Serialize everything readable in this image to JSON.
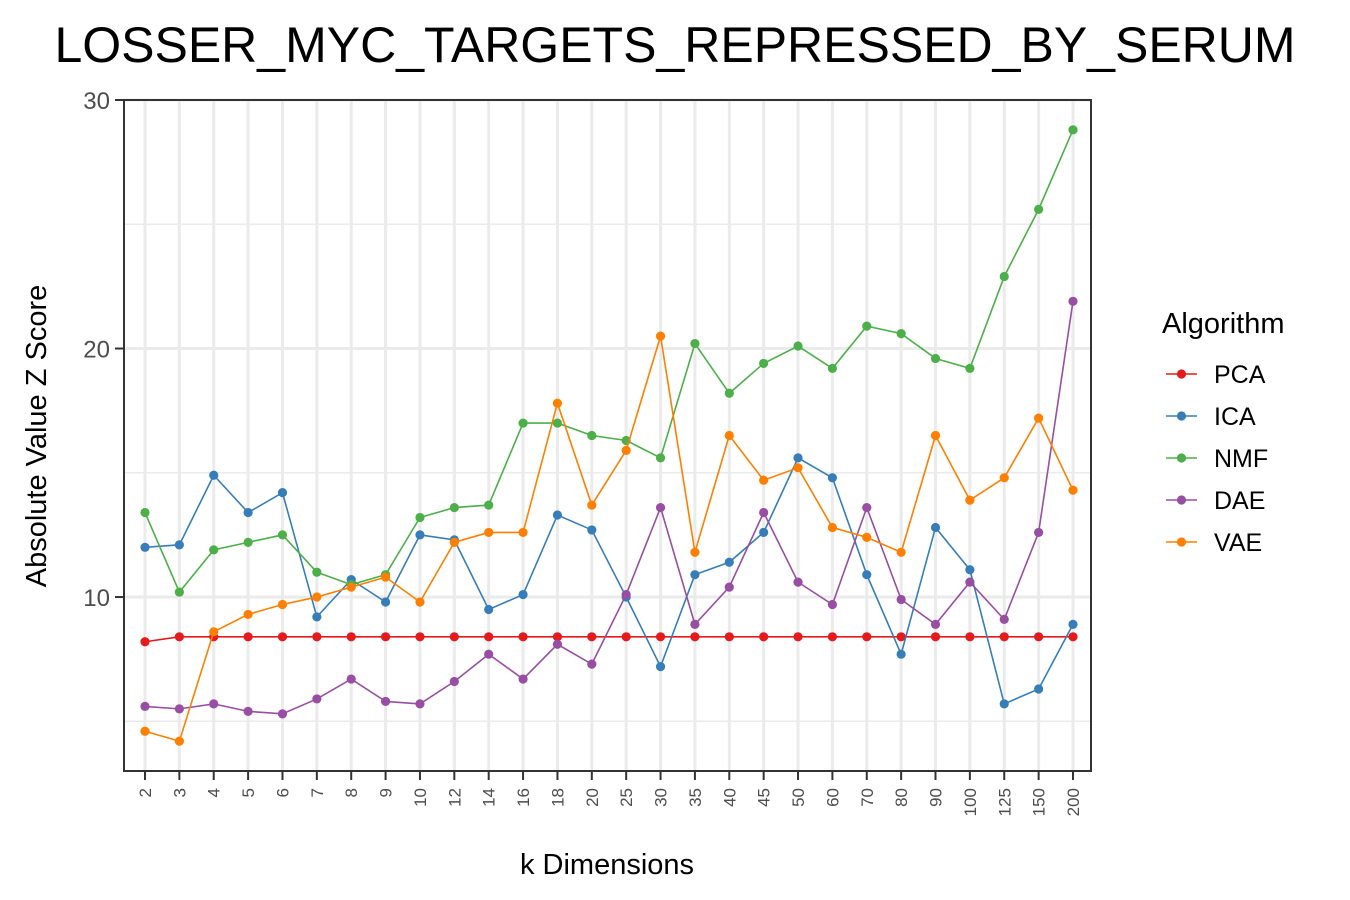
{
  "chart_data": {
    "type": "line",
    "title": "LOSSER_MYC_TARGETS_REPRESSED_BY_SERUM",
    "xlabel": "k Dimensions",
    "ylabel": "Absolute Value Z Score",
    "categories": [
      "2",
      "3",
      "4",
      "5",
      "6",
      "7",
      "8",
      "9",
      "10",
      "12",
      "14",
      "16",
      "18",
      "20",
      "25",
      "30",
      "35",
      "40",
      "45",
      "50",
      "60",
      "70",
      "80",
      "90",
      "100",
      "125",
      "150",
      "200"
    ],
    "ylim": [
      3,
      30
    ],
    "yticks": [
      "10",
      "20",
      "30"
    ],
    "grid": true,
    "legend": {
      "title": "Algorithm",
      "position": "right"
    },
    "series": [
      {
        "name": "PCA",
        "color": "#e41a1c",
        "values": [
          8.2,
          8.4,
          8.4,
          8.4,
          8.4,
          8.4,
          8.4,
          8.4,
          8.4,
          8.4,
          8.4,
          8.4,
          8.4,
          8.4,
          8.4,
          8.4,
          8.4,
          8.4,
          8.4,
          8.4,
          8.4,
          8.4,
          8.4,
          8.4,
          8.4,
          8.4,
          8.4,
          8.4
        ]
      },
      {
        "name": "ICA",
        "color": "#377eb8",
        "values": [
          12.0,
          12.1,
          14.9,
          13.4,
          14.2,
          9.2,
          10.7,
          9.8,
          12.5,
          12.3,
          9.5,
          10.1,
          13.3,
          12.7,
          10.0,
          7.2,
          10.9,
          11.4,
          12.6,
          15.6,
          14.8,
          10.9,
          7.7,
          12.8,
          11.1,
          5.7,
          6.3,
          8.9
        ]
      },
      {
        "name": "NMF",
        "color": "#4daf4a",
        "values": [
          13.4,
          10.2,
          11.9,
          12.2,
          12.5,
          11.0,
          10.5,
          10.9,
          13.2,
          13.6,
          13.7,
          17.0,
          17.0,
          16.5,
          16.3,
          15.6,
          20.2,
          18.2,
          19.4,
          20.1,
          19.2,
          20.9,
          20.6,
          19.6,
          19.2,
          22.9,
          25.6,
          28.8
        ]
      },
      {
        "name": "DAE",
        "color": "#984ea3",
        "values": [
          5.6,
          5.5,
          5.7,
          5.4,
          5.3,
          5.9,
          6.7,
          5.8,
          5.7,
          6.6,
          7.7,
          6.7,
          8.1,
          7.3,
          10.1,
          13.6,
          8.9,
          10.4,
          13.4,
          10.6,
          9.7,
          13.6,
          9.9,
          8.9,
          10.6,
          9.1,
          12.6,
          21.9
        ]
      },
      {
        "name": "VAE",
        "color": "#ff7f00",
        "values": [
          4.6,
          4.2,
          8.6,
          9.3,
          9.7,
          10.0,
          10.4,
          10.8,
          9.8,
          12.2,
          12.6,
          12.6,
          17.8,
          13.7,
          15.9,
          20.5,
          11.8,
          16.5,
          14.7,
          15.2,
          12.8,
          12.4,
          11.8,
          16.5,
          13.9,
          14.8,
          17.2,
          14.3
        ]
      }
    ]
  }
}
